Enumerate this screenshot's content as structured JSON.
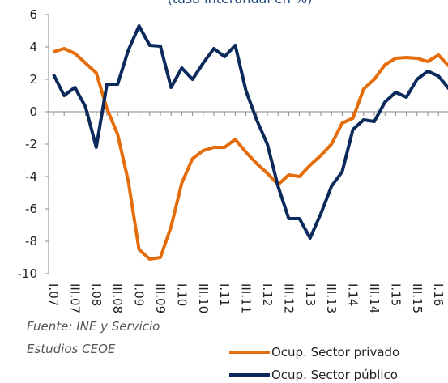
{
  "chart_data": {
    "type": "line",
    "subtitle": "(tasa interanual en %)",
    "categories": [
      "I.07",
      null,
      "III.07",
      null,
      "I.08",
      null,
      "III.08",
      null,
      "I.09",
      null,
      "III.09",
      null,
      "I.10",
      null,
      "III.10",
      null,
      "I.11",
      null,
      "III.11",
      null,
      "I.12",
      null,
      "III.12",
      null,
      "I.13",
      null,
      "III.13",
      null,
      "I.14",
      null,
      "III.14",
      null,
      "I.15",
      null,
      "III.15",
      null,
      "I.16",
      null
    ],
    "series": [
      {
        "name": "Ocup. Sector privado",
        "color": "#e46c0a",
        "values": [
          3.7,
          3.9,
          3.6,
          3.0,
          2.4,
          0.2,
          -1.4,
          -4.3,
          -8.5,
          -9.1,
          -9.0,
          -7.1,
          -4.4,
          -2.9,
          -2.4,
          -2.2,
          -2.2,
          -1.7,
          -2.5,
          -3.2,
          -3.8,
          -4.5,
          -3.9,
          -4.0,
          -3.3,
          -2.7,
          -2.0,
          -0.7,
          -0.4,
          1.4,
          2.0,
          2.9,
          3.3,
          3.35,
          3.3,
          3.1,
          3.5,
          2.8
        ]
      },
      {
        "name": "Ocup. Sector público",
        "color": "#0b2a5b",
        "values": [
          2.3,
          1.0,
          1.5,
          0.3,
          -2.2,
          1.7,
          1.7,
          3.8,
          5.3,
          4.1,
          4.05,
          1.5,
          2.7,
          2.0,
          3.0,
          3.9,
          3.4,
          4.1,
          1.3,
          -0.5,
          -2.0,
          -4.6,
          -6.6,
          -6.6,
          -7.8,
          -6.3,
          -4.6,
          -3.7,
          -1.1,
          -0.5,
          -0.6,
          0.6,
          1.2,
          0.9,
          2.0,
          2.5,
          2.2,
          1.4
        ]
      }
    ],
    "ylim": [
      -10,
      6
    ],
    "yticks": [
      -10,
      -8,
      -6,
      -4,
      -2,
      0,
      2,
      4,
      6
    ],
    "source": [
      "Fuente: INE y Servicio",
      "Estudios CEOE"
    ],
    "legend": "bottom-right"
  }
}
